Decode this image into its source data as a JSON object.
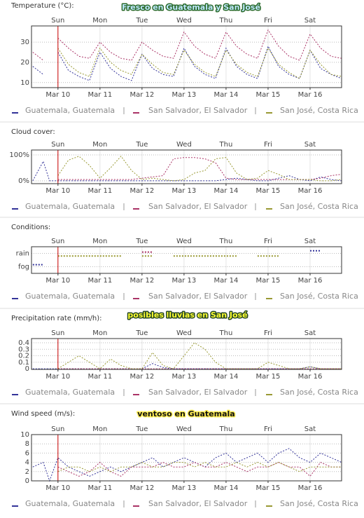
{
  "chart_data": [
    {
      "type": "line",
      "title": "Temperature (°C):",
      "annotation": "Fresco en Guatemala y San José",
      "x": [
        -0.6,
        -0.35,
        -0.2,
        0,
        0.25,
        0.5,
        0.75,
        1,
        1.25,
        1.5,
        1.75,
        2,
        2.25,
        2.5,
        2.75,
        3,
        3.25,
        3.5,
        3.75,
        4,
        4.25,
        4.5,
        4.75,
        5,
        5.25,
        5.5,
        5.75,
        6,
        6.25,
        6.5,
        6.75
      ],
      "xlim": [
        -0.63,
        6.75
      ],
      "xticks": [
        {
          "value": 0,
          "label": "Mar 10"
        },
        {
          "value": 1,
          "label": "Mar 11"
        },
        {
          "value": 2,
          "label": "Mar 12"
        },
        {
          "value": 3,
          "label": "Mar 13"
        },
        {
          "value": 4,
          "label": "Mar 14"
        },
        {
          "value": 5,
          "label": "Mar 15"
        },
        {
          "value": 6,
          "label": "Mar 16"
        }
      ],
      "day_labels": [
        "Sun",
        "Mon",
        "Tue",
        "Wed",
        "Thu",
        "Fri",
        "Sat"
      ],
      "marker_x": 0,
      "ylim": [
        7.5,
        38
      ],
      "yticks": [
        10,
        20,
        30
      ],
      "grid": true,
      "series": [
        {
          "name": "Guatemala, Guatemala",
          "color": "#333399",
          "values": [
            18,
            14,
            null,
            25,
            16,
            13,
            11,
            25,
            17,
            13,
            11,
            24,
            17,
            14,
            13,
            27,
            18,
            14,
            12,
            27,
            18,
            14,
            12,
            28,
            18,
            14,
            12,
            26,
            17,
            14,
            12
          ]
        },
        {
          "name": "San Salvador, El Salvador",
          "color": "#aa3366",
          "values": [
            25,
            21,
            null,
            32,
            27,
            23,
            22,
            30,
            25,
            22,
            21,
            30,
            26,
            23,
            22,
            35,
            28,
            24,
            22,
            35,
            28,
            24,
            22,
            36,
            28,
            23,
            21,
            34,
            27,
            23,
            22
          ]
        },
        {
          "name": "San José, Costa Rica",
          "color": "#999933",
          "values": [
            null,
            null,
            null,
            27,
            19,
            15,
            13,
            27,
            20,
            16,
            14,
            24,
            19,
            15,
            14,
            26,
            19,
            15,
            13,
            26,
            19,
            15,
            13,
            27,
            19,
            15,
            12,
            26,
            19,
            14,
            13
          ]
        }
      ]
    },
    {
      "type": "line",
      "title": "Cloud cover:",
      "x": [
        -0.6,
        -0.35,
        -0.2,
        0,
        0.25,
        0.5,
        0.75,
        1,
        1.25,
        1.5,
        1.75,
        2,
        2.25,
        2.5,
        2.75,
        3,
        3.25,
        3.5,
        3.75,
        4,
        4.25,
        4.5,
        4.75,
        5,
        5.25,
        5.5,
        5.75,
        6,
        6.25,
        6.5,
        6.75
      ],
      "xlim": [
        -0.63,
        6.75
      ],
      "xticks": [
        {
          "value": 0,
          "label": "Mar 10"
        },
        {
          "value": 1,
          "label": "Mar 11"
        },
        {
          "value": 2,
          "label": "Mar 12"
        },
        {
          "value": 3,
          "label": "Mar 13"
        },
        {
          "value": 4,
          "label": "Mar 14"
        },
        {
          "value": 5,
          "label": "Mar 15"
        },
        {
          "value": 6,
          "label": "Mar 16"
        }
      ],
      "day_labels": [
        "Sun",
        "Mon",
        "Tue",
        "Wed",
        "Thu",
        "Fri",
        "Sat"
      ],
      "marker_x": 0,
      "ylim": [
        -11,
        119
      ],
      "yticks": [
        {
          "value": 0,
          "label": "0%"
        },
        {
          "value": 100,
          "label": "100%"
        }
      ],
      "grid": true,
      "series": [
        {
          "name": "Guatemala, Guatemala",
          "color": "#333399",
          "values": [
            0,
            75,
            0,
            0,
            0,
            0,
            0,
            0,
            0,
            0,
            0,
            0,
            0,
            0,
            0,
            0,
            0,
            0,
            0,
            5,
            10,
            5,
            0,
            0,
            10,
            20,
            5,
            0,
            15,
            5,
            0
          ]
        },
        {
          "name": "San Salvador, El Salvador",
          "color": "#aa3366",
          "values": [
            null,
            null,
            null,
            5,
            5,
            5,
            5,
            5,
            5,
            5,
            5,
            10,
            15,
            20,
            85,
            90,
            90,
            85,
            70,
            10,
            5,
            5,
            5,
            5,
            5,
            5,
            5,
            5,
            10,
            20,
            25
          ]
        },
        {
          "name": "San José, Costa Rica",
          "color": "#999933",
          "values": [
            null,
            null,
            null,
            20,
            80,
            95,
            60,
            10,
            50,
            95,
            40,
            5,
            10,
            5,
            0,
            5,
            30,
            40,
            85,
            90,
            30,
            5,
            10,
            40,
            25,
            5,
            5,
            5,
            0,
            0,
            5
          ]
        }
      ]
    },
    {
      "type": "line",
      "title": "Conditions:",
      "x": [
        -0.6,
        -0.35,
        -0.2,
        0,
        0.25,
        0.5,
        0.75,
        1,
        1.25,
        1.5,
        1.75,
        2,
        2.25,
        2.5,
        2.75,
        3,
        3.25,
        3.5,
        3.75,
        4,
        4.25,
        4.5,
        4.75,
        5,
        5.25,
        5.5,
        5.75,
        6,
        6.25,
        6.5,
        6.75
      ],
      "xlim": [
        -0.63,
        6.75
      ],
      "xticks": [
        {
          "value": 0,
          "label": "Mar 10"
        },
        {
          "value": 1,
          "label": "Mar 11"
        },
        {
          "value": 2,
          "label": "Mar 12"
        },
        {
          "value": 3,
          "label": "Mar 13"
        },
        {
          "value": 4,
          "label": "Mar 14"
        },
        {
          "value": 5,
          "label": "Mar 15"
        },
        {
          "value": 6,
          "label": "Mar 16"
        }
      ],
      "day_labels": [
        "Sun",
        "Mon",
        "Tue",
        "Wed",
        "Thu",
        "Fri",
        "Sat"
      ],
      "marker_x": 0,
      "ylim": [
        0.5,
        2.5
      ],
      "yticks": [
        {
          "value": 1,
          "label": "fog"
        },
        {
          "value": 2,
          "label": "rain"
        }
      ],
      "grid": true,
      "series": [
        {
          "name": "Guatemala, Guatemala",
          "color": "#333399",
          "values": [
            1.15,
            1.15,
            null,
            null,
            null,
            null,
            null,
            null,
            null,
            null,
            null,
            null,
            null,
            null,
            null,
            null,
            null,
            null,
            null,
            null,
            null,
            null,
            null,
            null,
            null,
            null,
            null,
            2.2,
            2.2,
            null,
            null
          ]
        },
        {
          "name": "San Salvador, El Salvador",
          "color": "#aa3366",
          "values": [
            null,
            null,
            null,
            null,
            null,
            null,
            null,
            null,
            null,
            null,
            null,
            2.1,
            2.1,
            null,
            null,
            null,
            null,
            null,
            null,
            null,
            null,
            null,
            null,
            null,
            null,
            null,
            null,
            null,
            null,
            null,
            null
          ]
        },
        {
          "name": "San José, Costa Rica",
          "color": "#999933",
          "values": [
            null,
            null,
            null,
            1.8,
            1.8,
            1.8,
            1.8,
            1.8,
            1.8,
            1.8,
            null,
            1.8,
            1.8,
            null,
            1.8,
            1.8,
            1.8,
            1.8,
            1.8,
            1.8,
            1.8,
            null,
            1.8,
            1.8,
            1.8,
            null,
            null,
            null,
            null,
            null,
            null
          ]
        }
      ]
    },
    {
      "type": "line",
      "title": "Precipitation rate (mm/h):",
      "annotation": "posibles lluvias en San José",
      "x": [
        -0.6,
        -0.35,
        -0.2,
        0,
        0.25,
        0.5,
        0.75,
        1,
        1.25,
        1.5,
        1.75,
        2,
        2.25,
        2.5,
        2.75,
        3,
        3.25,
        3.5,
        3.75,
        4,
        4.25,
        4.5,
        4.75,
        5,
        5.25,
        5.5,
        5.75,
        6,
        6.25,
        6.5,
        6.75
      ],
      "xlim": [
        -0.63,
        6.75
      ],
      "xticks": [
        {
          "value": 0,
          "label": "Mar 10"
        },
        {
          "value": 1,
          "label": "Mar 11"
        },
        {
          "value": 2,
          "label": "Mar 12"
        },
        {
          "value": 3,
          "label": "Mar 13"
        },
        {
          "value": 4,
          "label": "Mar 14"
        },
        {
          "value": 5,
          "label": "Mar 15"
        },
        {
          "value": 6,
          "label": "Mar 16"
        }
      ],
      "day_labels": [
        "Sun",
        "Mon",
        "Tue",
        "Wed",
        "Thu",
        "Fri",
        "Sat"
      ],
      "marker_x": 0,
      "ylim": [
        -0.01,
        0.465
      ],
      "yticks": [
        0,
        0.1,
        0.2,
        0.3,
        0.4
      ],
      "grid": true,
      "series": [
        {
          "name": "Guatemala, Guatemala",
          "color": "#333399",
          "values": [
            0,
            0,
            0,
            0,
            0,
            0,
            0,
            0,
            0,
            0,
            0,
            0,
            0.08,
            0.02,
            0,
            0,
            0,
            0,
            0,
            0,
            0,
            0,
            0,
            0,
            0,
            0,
            0,
            0.03,
            0,
            0,
            0
          ]
        },
        {
          "name": "San Salvador, El Salvador",
          "color": "#aa3366",
          "values": [
            null,
            null,
            null,
            0,
            0,
            0,
            0,
            0,
            0,
            0,
            0,
            0,
            0,
            0,
            0,
            0,
            0,
            0,
            0,
            0,
            0,
            0,
            0,
            0,
            0,
            0,
            0,
            0,
            0,
            0,
            0
          ]
        },
        {
          "name": "San José, Costa Rica",
          "color": "#999933",
          "values": [
            null,
            null,
            null,
            0,
            0.1,
            0.2,
            0.1,
            0,
            0.15,
            0.05,
            0,
            0,
            0.25,
            0.05,
            0,
            0.2,
            0.4,
            0.3,
            0.1,
            0,
            0,
            0,
            0,
            0.1,
            0.05,
            0,
            0,
            0.03,
            0,
            0,
            0
          ]
        }
      ]
    },
    {
      "type": "line",
      "title": "Wind speed (m/s):",
      "annotation": "ventoso en Guatemala",
      "x": [
        -0.6,
        -0.35,
        -0.2,
        0,
        0.25,
        0.5,
        0.75,
        1,
        1.25,
        1.5,
        1.75,
        2,
        2.25,
        2.5,
        2.75,
        3,
        3.25,
        3.5,
        3.75,
        4,
        4.25,
        4.5,
        4.75,
        5,
        5.25,
        5.5,
        5.75,
        6,
        6.25,
        6.5,
        6.75
      ],
      "xlim": [
        -0.63,
        6.75
      ],
      "xticks": [
        {
          "value": 0,
          "label": "Mar 10"
        },
        {
          "value": 1,
          "label": "Mar 11"
        },
        {
          "value": 2,
          "label": "Mar 12"
        },
        {
          "value": 3,
          "label": "Mar 13"
        },
        {
          "value": 4,
          "label": "Mar 14"
        },
        {
          "value": 5,
          "label": "Mar 15"
        },
        {
          "value": 6,
          "label": "Mar 16"
        }
      ],
      "day_labels": [
        "Sun",
        "Mon",
        "Tue",
        "Wed",
        "Thu",
        "Fri",
        "Sat"
      ],
      "marker_x": 0,
      "ylim": [
        0,
        10
      ],
      "yticks": [
        0,
        2,
        4,
        6,
        8,
        10
      ],
      "grid": true,
      "series": [
        {
          "name": "Guatemala, Guatemala",
          "color": "#333399",
          "values": [
            3,
            4,
            0,
            5,
            3,
            2,
            1,
            2,
            3,
            2,
            3,
            4,
            5,
            3,
            4,
            5,
            4,
            3,
            5,
            6,
            4,
            5,
            6,
            4,
            6,
            7,
            5,
            4,
            6,
            5,
            4
          ]
        },
        {
          "name": "San Salvador, El Salvador",
          "color": "#aa3366",
          "values": [
            null,
            null,
            null,
            3,
            2,
            1,
            2,
            4,
            2,
            1,
            3,
            3,
            3,
            4,
            3,
            3,
            4,
            3,
            3,
            4,
            3,
            2,
            3,
            3,
            4,
            3,
            3,
            1,
            4,
            3,
            3
          ]
        },
        {
          "name": "San José, Costa Rica",
          "color": "#999933",
          "values": [
            null,
            null,
            null,
            2,
            3,
            3,
            2,
            3,
            2,
            3,
            3,
            4,
            3,
            3,
            4,
            4,
            3,
            4,
            3,
            3,
            4,
            3,
            4,
            3,
            4,
            3,
            2,
            3,
            3,
            3,
            3
          ]
        }
      ]
    }
  ]
}
